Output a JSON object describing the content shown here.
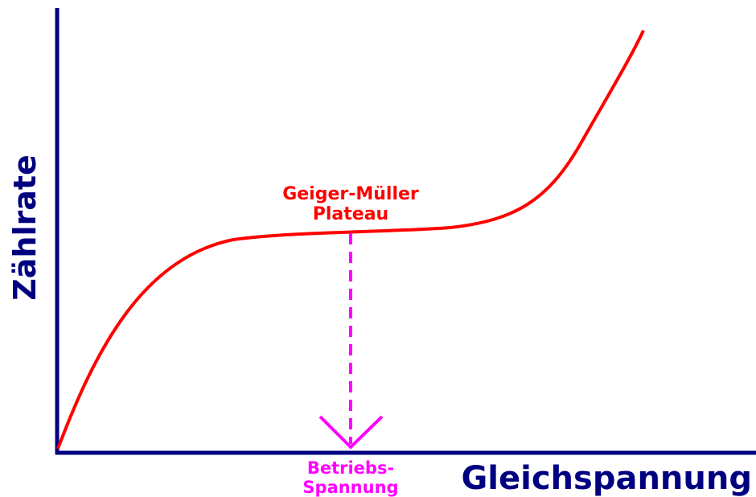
{
  "y_axis_label": "Zählrate",
  "x_axis_label": "Gleichspannung",
  "curve_label": [
    "Geiger-Müller",
    "Plateau"
  ],
  "marker_label": [
    "Betriebs-",
    "Spannung"
  ]
}
